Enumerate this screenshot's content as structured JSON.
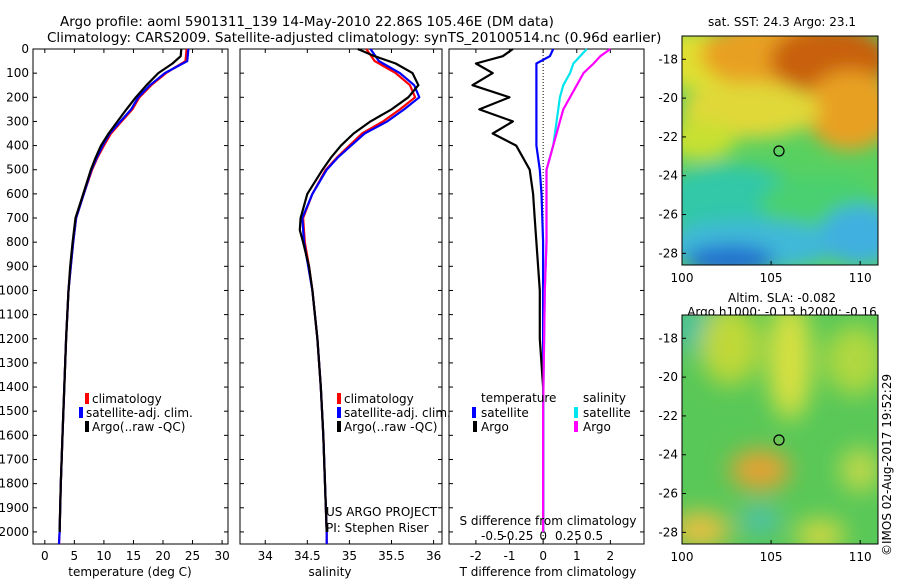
{
  "title": {
    "line1": "Argo profile: aoml 5901311_139 14-May-2010 22.86S 105.46E (DM data)",
    "line2": "Climatology: CARS2009. Satellite-adjusted climatology: synTS_20100514.nc (0.96d earlier)"
  },
  "stamp": "©IMOS 02-Aug-2017 19:52:29",
  "colors": {
    "climatology": "#ff0000",
    "satellite": "#0000ff",
    "argo": "#000000",
    "sal_satellite": "#00e5ee",
    "sal_argo": "#ff00ff"
  },
  "depth_axis": {
    "range": [
      0,
      2050
    ],
    "ticks": [
      0,
      100,
      200,
      300,
      400,
      500,
      600,
      700,
      800,
      900,
      1000,
      1100,
      1200,
      1300,
      1400,
      1500,
      1600,
      1700,
      1800,
      1900,
      2000
    ]
  },
  "legend_ts": [
    "climatology",
    "satellite-adj. clim.",
    "Argo(..raw -QC)"
  ],
  "project": {
    "line1": "US ARGO PROJECT",
    "line2": "PI: Stephen Riser"
  },
  "diff_legend": {
    "temp_title": "temperature",
    "sal_title": "salinity",
    "sat": "satellite",
    "argo": "Argo"
  },
  "map_top": {
    "title": "sat. SST: 24.3 Argo: 23.1",
    "x_ticks": [
      "100",
      "105",
      "110"
    ],
    "y_ticks": [
      "-18",
      "-20",
      "-22",
      "-24",
      "-26",
      "-28"
    ]
  },
  "map_bottom": {
    "title1": "Altim. SLA: -0.082",
    "title2": "Argo h1000: -0.13 h2000: -0.16",
    "x_ticks": [
      "100",
      "105",
      "110"
    ],
    "y_ticks": [
      "-18",
      "-20",
      "-22",
      "-24",
      "-26",
      "-28"
    ]
  },
  "chart_data": [
    {
      "type": "line",
      "panel": "temperature",
      "xlabel": "temperature (deg C)",
      "xlim": [
        -2,
        31
      ],
      "x_ticks": [
        0,
        5,
        10,
        15,
        20,
        25,
        30
      ],
      "ylim": [
        2050,
        0
      ],
      "series": [
        {
          "name": "climatology",
          "depth": [
            0,
            50,
            100,
            150,
            200,
            250,
            300,
            350,
            400,
            450,
            500,
            600,
            700,
            800,
            900,
            1000,
            1200,
            1400,
            1600,
            1800,
            2000,
            2050
          ],
          "values": [
            24.0,
            23.8,
            20.5,
            18.0,
            16.0,
            14.8,
            13.0,
            11.2,
            10.0,
            8.9,
            8.0,
            6.6,
            5.3,
            4.8,
            4.4,
            4.0,
            3.6,
            3.3,
            3.0,
            2.7,
            2.5,
            2.4
          ]
        },
        {
          "name": "satellite-adj. clim.",
          "depth": [
            0,
            50,
            100,
            150,
            200,
            250,
            300,
            350,
            400,
            450,
            500,
            600,
            700,
            800,
            900,
            1000,
            1200,
            1400,
            1600,
            1800,
            2000,
            2050
          ],
          "values": [
            24.3,
            24.1,
            20.3,
            17.8,
            15.8,
            14.6,
            12.8,
            11.0,
            9.8,
            8.8,
            7.9,
            6.6,
            5.3,
            4.8,
            4.4,
            4.0,
            3.6,
            3.3,
            3.0,
            2.7,
            2.5,
            2.4
          ]
        },
        {
          "name": "Argo(..raw -QC)",
          "depth": [
            0,
            30,
            60,
            100,
            150,
            200,
            250,
            300,
            350,
            400,
            450,
            500,
            600,
            700,
            800,
            900,
            1000,
            1200,
            1400,
            1600,
            1800,
            2000
          ],
          "values": [
            23.1,
            23.0,
            21.6,
            19.2,
            17.2,
            15.4,
            13.8,
            12.3,
            10.8,
            9.5,
            8.6,
            7.8,
            6.5,
            5.2,
            4.7,
            4.3,
            4.0,
            3.6,
            3.3,
            3.0,
            2.7,
            2.5
          ]
        }
      ]
    },
    {
      "type": "line",
      "panel": "salinity",
      "xlabel": "salinity",
      "xlim": [
        33.7,
        36.1
      ],
      "x_ticks": [
        34,
        34.5,
        35,
        35.5,
        36
      ],
      "ylim": [
        2050,
        0
      ],
      "series": [
        {
          "name": "climatology",
          "depth": [
            0,
            50,
            100,
            150,
            200,
            250,
            300,
            350,
            400,
            450,
            500,
            600,
            700,
            800,
            900,
            1000,
            1200,
            1400,
            1600,
            1800,
            2000,
            2050
          ],
          "values": [
            35.2,
            35.3,
            35.55,
            35.72,
            35.78,
            35.6,
            35.4,
            35.15,
            35.0,
            34.85,
            34.72,
            34.56,
            34.45,
            34.47,
            34.52,
            34.56,
            34.62,
            34.66,
            34.69,
            34.71,
            34.73,
            34.73
          ]
        },
        {
          "name": "satellite-adj. clim.",
          "depth": [
            0,
            50,
            100,
            150,
            200,
            250,
            300,
            350,
            400,
            450,
            500,
            600,
            700,
            800,
            900,
            1000,
            1200,
            1400,
            1600,
            1800,
            2000,
            2050
          ],
          "values": [
            35.25,
            35.35,
            35.6,
            35.77,
            35.83,
            35.65,
            35.45,
            35.18,
            35.02,
            34.86,
            34.73,
            34.56,
            34.44,
            34.46,
            34.51,
            34.56,
            34.62,
            34.66,
            34.69,
            34.71,
            34.73,
            34.73
          ]
        },
        {
          "name": "Argo(..raw -QC)",
          "depth": [
            0,
            30,
            60,
            100,
            150,
            200,
            250,
            300,
            350,
            400,
            450,
            500,
            600,
            700,
            750,
            800,
            900,
            1000,
            1200,
            1400,
            1600,
            1800,
            2000
          ],
          "values": [
            35.1,
            35.3,
            35.55,
            35.75,
            35.82,
            35.7,
            35.5,
            35.25,
            35.05,
            34.9,
            34.78,
            34.68,
            34.5,
            34.42,
            34.41,
            34.45,
            34.52,
            34.56,
            34.62,
            34.66,
            34.69,
            34.71,
            34.73
          ]
        }
      ]
    },
    {
      "type": "line",
      "panel": "differences",
      "xlabel": "T difference from climatology",
      "xlabel_top": "S difference from climatology",
      "xlim": [
        -2.8,
        3.0
      ],
      "x_ticks": [
        -2,
        -1,
        0,
        1,
        2
      ],
      "x_ticks_sal": [
        "-0.5",
        "-0.25",
        "0",
        "0.25",
        "0.5"
      ],
      "ylim": [
        2050,
        0
      ],
      "series": [
        {
          "name": "temperature satellite",
          "depth": [
            0,
            30,
            60,
            100,
            150,
            200,
            300,
            400,
            500,
            600,
            800,
            1000,
            1500,
            2000
          ],
          "values": [
            0.3,
            0.2,
            -0.2,
            -0.2,
            -0.2,
            -0.2,
            -0.2,
            -0.2,
            -0.1,
            -0.05,
            0,
            0,
            0,
            0
          ]
        },
        {
          "name": "temperature Argo",
          "depth": [
            0,
            30,
            60,
            100,
            150,
            200,
            250,
            300,
            350,
            400,
            450,
            500,
            600,
            700,
            800,
            900,
            1000,
            1200,
            1400,
            1500,
            1600,
            1800,
            2000
          ],
          "values": [
            -0.9,
            -1.2,
            -2.0,
            -1.5,
            -2.1,
            -1.0,
            -1.9,
            -0.9,
            -1.5,
            -0.8,
            -0.6,
            -0.4,
            -0.3,
            -0.25,
            -0.2,
            -0.15,
            -0.1,
            -0.1,
            0,
            0,
            0,
            0,
            0
          ]
        },
        {
          "name": "salinity satellite",
          "depth": [
            0,
            30,
            60,
            100,
            150,
            200,
            300,
            400,
            500,
            600,
            800,
            1000,
            1500,
            2000
          ],
          "values": [
            1.3,
            1.1,
            0.9,
            0.8,
            0.6,
            0.5,
            0.4,
            0.3,
            0.1,
            0.1,
            0.1,
            0.05,
            0,
            0
          ]
        },
        {
          "name": "salinity Argo",
          "depth": [
            0,
            30,
            60,
            100,
            150,
            200,
            250,
            300,
            350,
            400,
            450,
            500,
            600,
            700,
            800,
            1000,
            1500,
            2000
          ],
          "values": [
            2.0,
            1.7,
            1.5,
            1.2,
            1.0,
            0.8,
            0.6,
            0.5,
            0.4,
            0.3,
            0.2,
            0.1,
            0.1,
            0.1,
            0.1,
            0.05,
            0,
            0
          ]
        }
      ]
    }
  ]
}
